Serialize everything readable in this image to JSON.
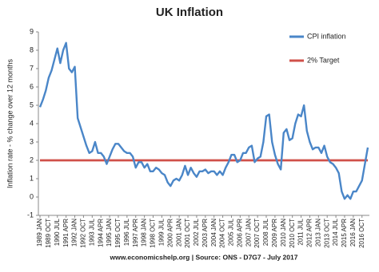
{
  "chart_data": {
    "type": "line",
    "title": "UK Inflation",
    "y_label": "Inflation rate - % change over 12 months",
    "footer": "www.economicshelp.org | Source: ONS - D7G7 - July 2017",
    "categories": [
      "1989 JAN",
      null,
      null,
      "1989 OCT",
      null,
      null,
      "1990 JUL",
      null,
      null,
      "1991 APR",
      null,
      null,
      "1992 JAN",
      null,
      null,
      "1992 OCT",
      null,
      null,
      "1993 JUL",
      null,
      null,
      "1994 APR",
      null,
      null,
      "1995 JAN",
      null,
      null,
      "1995 OCT",
      null,
      null,
      "1996 JUL",
      null,
      null,
      "1997 APR",
      null,
      null,
      "1998 JAN",
      null,
      null,
      "1998 OCT",
      null,
      null,
      "1999 JUL",
      null,
      null,
      "2000 APR",
      null,
      null,
      "2001 JAN",
      null,
      null,
      "2001 OCT",
      null,
      null,
      "2002 JUL",
      null,
      null,
      "2003 APR",
      null,
      null,
      "2004 JAN",
      null,
      null,
      "2004 OCT",
      null,
      null,
      "2005 JUL",
      null,
      null,
      "2006 APR",
      null,
      null,
      "2007 JAN",
      null,
      null,
      "2007 OCT",
      null,
      null,
      "2008 JUL",
      null,
      null,
      "2009 APR",
      null,
      null,
      "2010 JAN",
      null,
      null,
      "2010 OCT",
      null,
      null,
      "2011 JUL",
      null,
      null,
      "2012 APR",
      null,
      null,
      "2013 JAN",
      null,
      null,
      "2013 OCT",
      null,
      null,
      "2014 JUL",
      null,
      null,
      "2015 APR",
      null,
      null,
      "2016 JAN",
      null,
      null,
      "2016 OCT",
      null,
      null
    ],
    "series": [
      {
        "name": "CPI inflation",
        "color": "#4a86c8",
        "values": [
          4.9,
          5.3,
          5.8,
          6.5,
          6.9,
          7.5,
          8.1,
          7.3,
          8.0,
          8.4,
          7.0,
          6.8,
          7.1,
          4.3,
          3.8,
          3.3,
          2.8,
          2.4,
          2.5,
          3.0,
          2.4,
          2.4,
          2.2,
          1.8,
          2.2,
          2.6,
          2.9,
          2.9,
          2.7,
          2.5,
          2.4,
          2.4,
          2.2,
          1.6,
          1.9,
          1.9,
          1.6,
          1.8,
          1.4,
          1.4,
          1.6,
          1.5,
          1.3,
          1.2,
          0.8,
          0.6,
          0.9,
          1.0,
          0.9,
          1.2,
          1.7,
          1.2,
          1.6,
          1.3,
          1.1,
          1.4,
          1.4,
          1.5,
          1.3,
          1.4,
          1.4,
          1.2,
          1.4,
          1.2,
          1.6,
          1.9,
          2.3,
          2.3,
          1.9,
          2.0,
          2.4,
          2.4,
          2.7,
          2.8,
          1.9,
          2.1,
          2.2,
          3.0,
          4.4,
          4.5,
          3.0,
          2.3,
          1.8,
          1.5,
          3.5,
          3.7,
          3.1,
          3.2,
          4.0,
          4.5,
          4.4,
          5.0,
          3.6,
          3.0,
          2.6,
          2.7,
          2.7,
          2.4,
          2.8,
          2.2,
          1.9,
          1.8,
          1.6,
          1.3,
          0.3,
          -0.1,
          0.1,
          -0.1,
          0.3,
          0.3,
          0.6,
          0.9,
          1.8,
          2.7
        ]
      },
      {
        "name": "2% Target",
        "color": "#d0504a",
        "values": [
          2,
          2,
          2,
          2,
          2,
          2,
          2,
          2,
          2,
          2,
          2,
          2,
          2,
          2,
          2,
          2,
          2,
          2,
          2,
          2,
          2,
          2,
          2,
          2,
          2,
          2,
          2,
          2,
          2,
          2,
          2,
          2,
          2,
          2,
          2,
          2,
          2,
          2,
          2,
          2,
          2,
          2,
          2,
          2,
          2,
          2,
          2,
          2,
          2,
          2,
          2,
          2,
          2,
          2,
          2,
          2,
          2,
          2,
          2,
          2,
          2,
          2,
          2,
          2,
          2,
          2,
          2,
          2,
          2,
          2,
          2,
          2,
          2,
          2,
          2,
          2,
          2,
          2,
          2,
          2,
          2,
          2,
          2,
          2,
          2,
          2,
          2,
          2,
          2,
          2,
          2,
          2,
          2,
          2,
          2,
          2,
          2,
          2,
          2,
          2,
          2,
          2,
          2,
          2,
          2,
          2,
          2,
          2,
          2,
          2,
          2,
          2,
          2,
          2
        ]
      }
    ],
    "ylim": [
      -1,
      9
    ],
    "yticks": [
      -1,
      0,
      1,
      2,
      3,
      4,
      5,
      6,
      7,
      8,
      9
    ]
  }
}
